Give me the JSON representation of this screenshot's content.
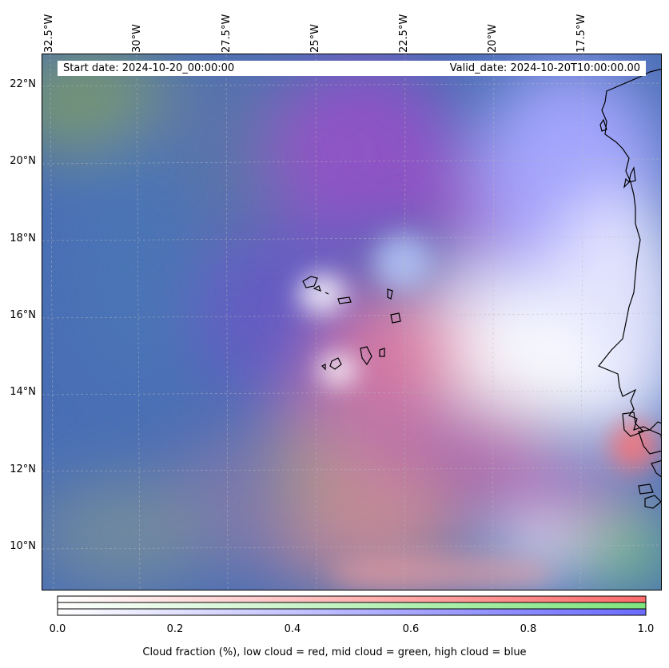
{
  "map": {
    "start_date": "Start date: 2024-10-20_00:00:00",
    "valid_date": "Valid_date: 2024-10-20T10:00:00.00",
    "lon_labels": [
      {
        "text": "32.5°W",
        "value": -32.5
      },
      {
        "text": "30°W",
        "value": -30
      },
      {
        "text": "27.5°W",
        "value": -27.5
      },
      {
        "text": "25°W",
        "value": -25
      },
      {
        "text": "22.5°W",
        "value": -22.5
      },
      {
        "text": "20°W",
        "value": -20
      },
      {
        "text": "17.5°W",
        "value": -17.5
      }
    ],
    "lat_labels": [
      {
        "text": "22°N",
        "value": 22
      },
      {
        "text": "20°N",
        "value": 20
      },
      {
        "text": "18°N",
        "value": 18
      },
      {
        "text": "16°N",
        "value": 16
      },
      {
        "text": "14°N",
        "value": 14
      },
      {
        "text": "12°N",
        "value": 12
      },
      {
        "text": "10°N",
        "value": 10
      }
    ],
    "colors": {
      "low_cloud": "#ff6b6b",
      "mid_cloud": "#7ee57e",
      "high_cloud": "#6b6bff",
      "ocean": "#4a6fb5"
    }
  },
  "colorbar": {
    "ticks": [
      "0.0",
      "0.2",
      "0.4",
      "0.6",
      "0.8",
      "1.0"
    ],
    "tick_values": [
      0.0,
      0.2,
      0.4,
      0.6,
      0.8,
      1.0
    ],
    "title": "Cloud fraction (%), low cloud = red, mid cloud = green, high cloud = blue"
  }
}
